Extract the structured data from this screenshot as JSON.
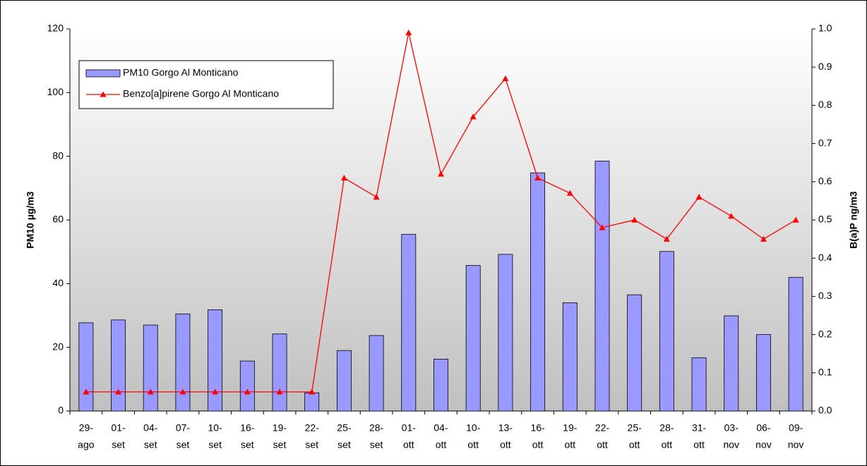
{
  "chart_data": {
    "type": "bar-line",
    "categories": [
      [
        "29-",
        "ago"
      ],
      [
        "01-",
        "set"
      ],
      [
        "04-",
        "set"
      ],
      [
        "07-",
        "set"
      ],
      [
        "10-",
        "set"
      ],
      [
        "16-",
        "set"
      ],
      [
        "19-",
        "set"
      ],
      [
        "22-",
        "set"
      ],
      [
        "25-",
        "set"
      ],
      [
        "28-",
        "set"
      ],
      [
        "01-",
        "ott"
      ],
      [
        "04-",
        "ott"
      ],
      [
        "10-",
        "ott"
      ],
      [
        "13-",
        "ott"
      ],
      [
        "16-",
        "ott"
      ],
      [
        "19-",
        "ott"
      ],
      [
        "22-",
        "ott"
      ],
      [
        "25-",
        "ott"
      ],
      [
        "28-",
        "ott"
      ],
      [
        "31-",
        "ott"
      ],
      [
        "03-",
        "nov"
      ],
      [
        "06-",
        "nov"
      ],
      [
        "09-",
        "nov"
      ]
    ],
    "series": [
      {
        "name": "PM10 Gorgo Al Monticano",
        "type": "bar",
        "color": "#9999ff",
        "values": [
          27.7,
          28.6,
          27,
          30.5,
          31.8,
          15.7,
          24.2,
          5.7,
          19,
          23.7,
          55.5,
          16.3,
          45.7,
          49.2,
          74.8,
          34,
          78.5,
          36.5,
          50.1,
          16.7,
          29.9,
          24,
          42
        ]
      },
      {
        "name": "Benzo[a]pirene Gorgo Al Monticano",
        "type": "line",
        "axis": "y2",
        "color": "#ff0000",
        "values": [
          0.05,
          0.05,
          0.05,
          0.05,
          0.05,
          0.05,
          0.05,
          0.05,
          0.61,
          0.56,
          0.99,
          0.62,
          0.77,
          0.87,
          0.61,
          0.57,
          0.48,
          0.5,
          0.45,
          0.56,
          0.51,
          0.45,
          0.5
        ]
      }
    ],
    "ylabel": "PM10 µg/m3",
    "y2label": "B(a)P ng/m3",
    "ylim": [
      0,
      120
    ],
    "yticks": [
      0,
      20,
      40,
      60,
      80,
      100,
      120
    ],
    "y2lim": [
      0,
      1
    ],
    "y2ticks": [
      {
        "value": 0,
        "label": "0.0"
      },
      {
        "value": 0.1,
        "label": "0.1"
      },
      {
        "value": 0.2,
        "label": "0.2"
      },
      {
        "value": 0.3,
        "label": "0.3"
      },
      {
        "value": 0.4,
        "label": "0.4"
      },
      {
        "value": 0.5,
        "label": "0.5"
      },
      {
        "value": 0.6,
        "label": "0.6"
      },
      {
        "value": 0.7,
        "label": "0.7"
      },
      {
        "value": 0.8,
        "label": "0.8"
      },
      {
        "value": 0.9,
        "label": "0.9"
      },
      {
        "value": 1,
        "label": "1.0"
      }
    ],
    "legend": "upper left",
    "grid": false
  }
}
